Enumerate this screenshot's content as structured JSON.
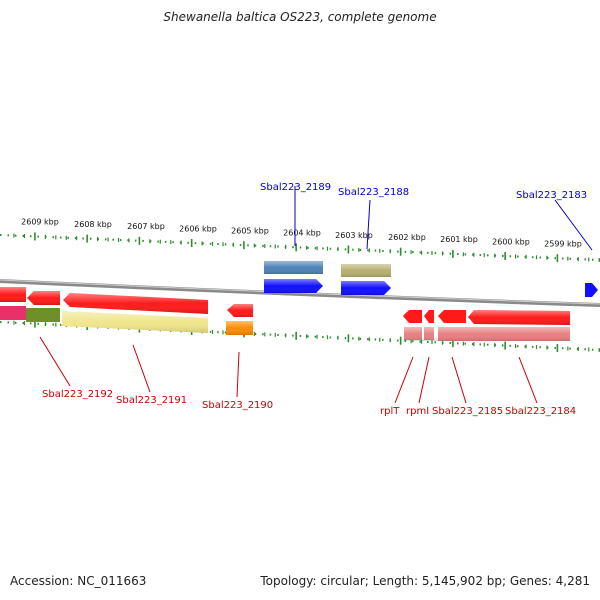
{
  "title": "Shewanella baltica OS223, complete genome",
  "footer": {
    "accession": "Accession: NC_011663",
    "summary": "Topology: circular; Length: 5,145,902 bp; Genes: 4,281"
  },
  "colors": {
    "ruler_tick": "#2e8b2e",
    "backbone": "#8a8a8a",
    "gene_red": "#ff1a1a",
    "gene_blue": "#1010ff",
    "gene_steelblue": "#4f83b8",
    "gene_olive": "#b8b070",
    "gene_pink": "#e8306a",
    "gene_green": "#6f8f2a",
    "gene_yellow": "#f0e68c",
    "gene_orange": "#ff8c00",
    "gene_salmon": "#e88080",
    "label_blue": "#0000cc",
    "label_red": "#cc0000"
  },
  "ruler": {
    "labels": [
      "2609 kbp",
      "2608 kbp",
      "2607 kbp",
      "2606 kbp",
      "2605 kbp",
      "2604 kbp",
      "2603 kbp",
      "2602 kbp",
      "2601 kbp",
      "2600 kbp",
      "2599 kbp"
    ]
  },
  "labels_top": [
    {
      "text": "Sbal223_2189"
    },
    {
      "text": "Sbal223_2188"
    },
    {
      "text": "Sbal223_2183"
    }
  ],
  "labels_bottom": [
    {
      "text": "Sbal223_2192"
    },
    {
      "text": "Sbal223_2191"
    },
    {
      "text": "Sbal223_2190"
    },
    {
      "text": "rplT"
    },
    {
      "text": "rpmI"
    },
    {
      "text": "Sbal223_2185"
    },
    {
      "text": "Sbal223_2184"
    }
  ]
}
